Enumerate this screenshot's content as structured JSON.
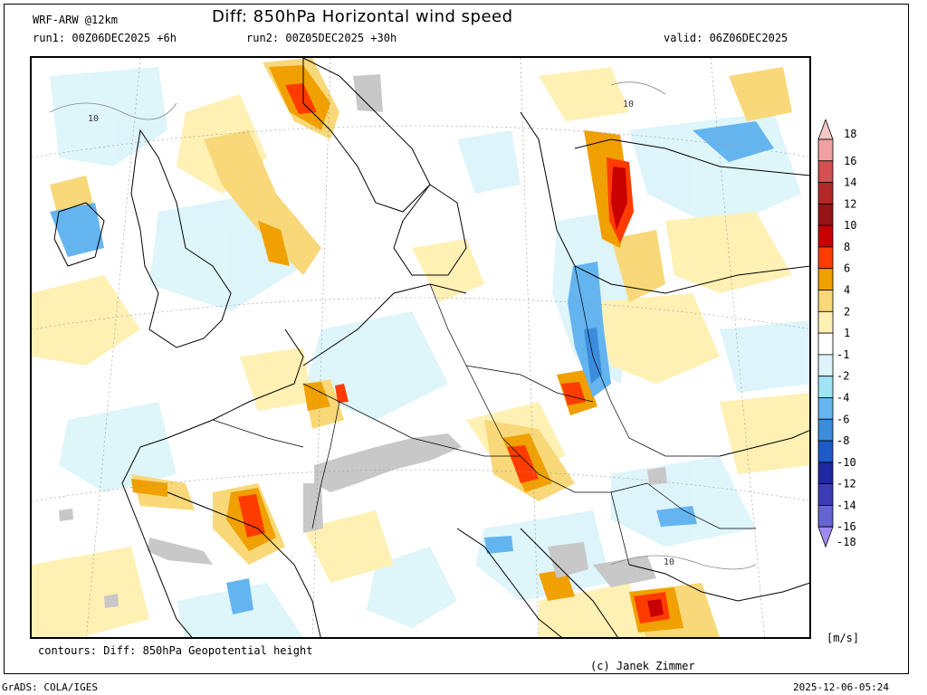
{
  "header": {
    "model": "WRF-ARW @12km",
    "title": "Diff: 850hPa Horizontal wind speed",
    "run1": "run1: 00Z06DEC2025 +6h",
    "run2": "run2: 00Z05DEC2025 +30h",
    "valid": "valid: 06Z06DEC2025"
  },
  "footer": {
    "contours": "contours: Diff: 850hPa Geopotential height",
    "copyright": "(c) Janek Zimmer",
    "grads": "GrADS: COLA/IGES",
    "timestamp": "2025-12-06-05:24"
  },
  "colorbar": {
    "units": "[m/s]",
    "levels": [
      {
        "label": "18",
        "color": "#f5c8c8"
      },
      {
        "label": "16",
        "color": "#f0a0a0"
      },
      {
        "label": "14",
        "color": "#d25050"
      },
      {
        "label": "12",
        "color": "#b42828"
      },
      {
        "label": "10",
        "color": "#961414"
      },
      {
        "label": "8",
        "color": "#c80000"
      },
      {
        "label": "6",
        "color": "#ff3c00"
      },
      {
        "label": "4",
        "color": "#f0a000"
      },
      {
        "label": "2",
        "color": "#f8d878"
      },
      {
        "label": "1",
        "color": "#fff0b4"
      },
      {
        "label": "-1",
        "color": "#ffffff"
      },
      {
        "label": "-2",
        "color": "#dcf4fa"
      },
      {
        "label": "-4",
        "color": "#a0e4f8"
      },
      {
        "label": "-6",
        "color": "#64b4f0"
      },
      {
        "label": "-8",
        "color": "#3c8cdc"
      },
      {
        "label": "-10",
        "color": "#1e5ac8"
      },
      {
        "label": "-12",
        "color": "#1e28a0"
      },
      {
        "label": "-14",
        "color": "#3c3cb4"
      },
      {
        "label": "-16",
        "color": "#6464d2"
      },
      {
        "label": "-18",
        "color": "#a08cf0"
      }
    ]
  },
  "map": {
    "contour_labels": [
      "10",
      "10",
      "10"
    ],
    "terrain_mask_color": "#c8c8c8"
  }
}
